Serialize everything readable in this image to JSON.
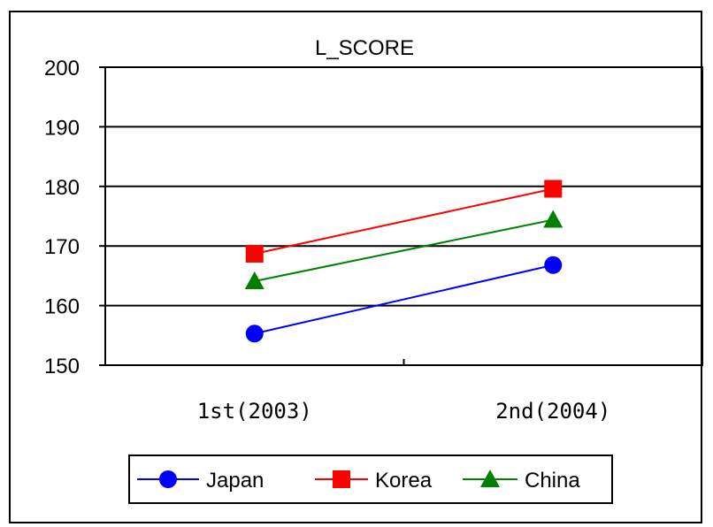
{
  "chart_data": {
    "type": "line",
    "title": "L_SCORE",
    "xlabel": "",
    "ylabel": "",
    "categories": [
      "1st(2003)",
      "2nd(2004)"
    ],
    "ylim": [
      150,
      200
    ],
    "yticks": [
      150,
      160,
      170,
      180,
      190,
      200
    ],
    "grid": true,
    "legend_position": "bottom",
    "series": [
      {
        "name": "Japan",
        "values": [
          155.3,
          166.8
        ],
        "color": "#0000ff",
        "marker": "circle"
      },
      {
        "name": "Korea",
        "values": [
          168.7,
          179.6
        ],
        "color": "#ff0000",
        "marker": "square"
      },
      {
        "name": "China",
        "values": [
          164.1,
          174.4
        ],
        "color": "#008000",
        "marker": "triangle"
      }
    ]
  }
}
